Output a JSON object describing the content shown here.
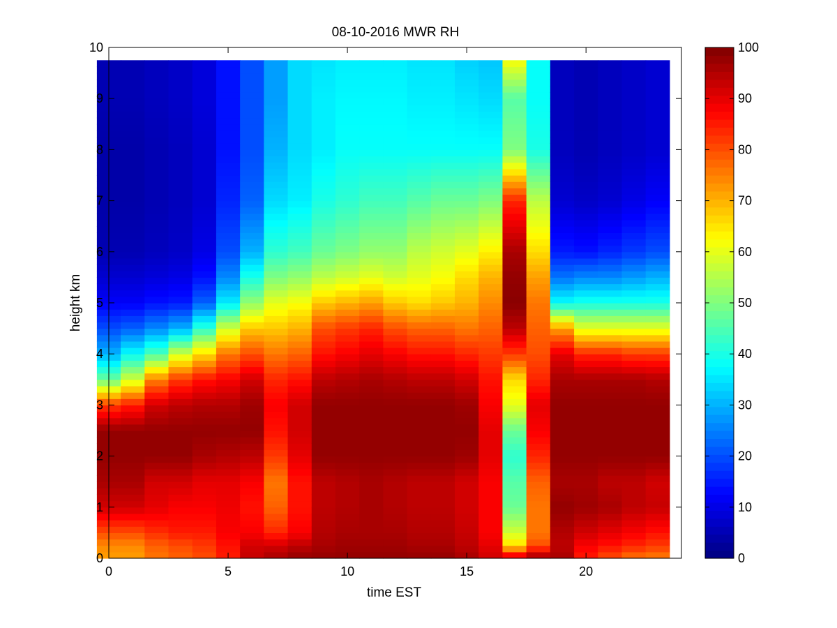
{
  "chart_data": {
    "type": "heatmap",
    "title": "08-10-2016 MWR RH",
    "xlabel": "time EST",
    "ylabel": "height km",
    "xlim": [
      0,
      24
    ],
    "ylim": [
      0,
      10
    ],
    "xticks": [
      0,
      5,
      10,
      15,
      20
    ],
    "yticks": [
      0,
      1,
      2,
      3,
      4,
      5,
      6,
      7,
      8,
      9,
      10
    ],
    "colorbar": {
      "min": 0,
      "max": 100,
      "ticks": [
        0,
        10,
        20,
        30,
        40,
        50,
        60,
        70,
        80,
        90,
        100
      ],
      "colormap": "jet"
    },
    "grid": false,
    "x_columns": [
      0,
      1,
      2,
      3,
      4,
      5,
      6,
      7,
      8,
      9,
      10,
      11,
      12,
      13,
      14,
      15,
      16,
      17,
      18,
      19,
      20,
      21,
      22,
      23
    ],
    "y_nodes_km": [
      0,
      0.25,
      0.5,
      1,
      1.5,
      2,
      2.5,
      3,
      3.5,
      4,
      4.5,
      5,
      5.5,
      6,
      7,
      8,
      9,
      9.75
    ],
    "rh_profiles": [
      [
        72,
        74,
        80,
        92,
        96,
        98,
        98,
        82,
        48,
        30,
        20,
        12,
        8,
        5,
        4,
        4,
        5,
        5
      ],
      [
        72,
        74,
        80,
        92,
        96,
        98,
        98,
        85,
        58,
        38,
        22,
        12,
        8,
        5,
        4,
        4,
        5,
        5
      ],
      [
        76,
        78,
        83,
        90,
        92,
        98,
        98,
        92,
        75,
        45,
        26,
        14,
        9,
        6,
        5,
        5,
        6,
        6
      ],
      [
        78,
        80,
        85,
        88,
        92,
        98,
        98,
        94,
        82,
        58,
        30,
        15,
        10,
        7,
        6,
        6,
        7,
        7
      ],
      [
        80,
        82,
        85,
        88,
        90,
        96,
        98,
        95,
        86,
        66,
        42,
        22,
        14,
        10,
        8,
        8,
        9,
        9
      ],
      [
        85,
        86,
        88,
        89,
        90,
        95,
        98,
        95,
        88,
        76,
        58,
        36,
        26,
        20,
        16,
        14,
        14,
        14
      ],
      [
        93,
        92,
        88,
        86,
        88,
        94,
        98,
        97,
        92,
        80,
        68,
        52,
        40,
        30,
        22,
        20,
        20,
        20
      ],
      [
        96,
        92,
        84,
        78,
        76,
        82,
        86,
        88,
        84,
        76,
        68,
        60,
        50,
        42,
        34,
        30,
        28,
        28
      ],
      [
        98,
        94,
        88,
        86,
        86,
        90,
        92,
        92,
        86,
        78,
        70,
        62,
        52,
        44,
        36,
        34,
        34,
        34
      ],
      [
        98,
        96,
        95,
        94,
        94,
        98,
        98,
        98,
        94,
        86,
        80,
        68,
        56,
        48,
        40,
        36,
        36,
        35
      ],
      [
        98,
        97,
        96,
        95,
        95,
        98,
        98,
        98,
        95,
        88,
        82,
        70,
        58,
        50,
        42,
        38,
        37,
        36
      ],
      [
        98,
        97,
        96,
        96,
        96,
        98,
        98,
        98,
        96,
        90,
        84,
        72,
        60,
        52,
        44,
        38,
        37,
        36
      ],
      [
        98,
        97,
        96,
        95,
        95,
        98,
        98,
        98,
        95,
        88,
        80,
        68,
        58,
        52,
        44,
        38,
        37,
        36
      ],
      [
        98,
        96,
        95,
        94,
        94,
        98,
        98,
        98,
        94,
        86,
        78,
        66,
        60,
        56,
        46,
        38,
        36,
        35
      ],
      [
        98,
        96,
        95,
        94,
        94,
        98,
        98,
        98,
        94,
        86,
        78,
        68,
        62,
        58,
        48,
        38,
        36,
        35
      ],
      [
        96,
        94,
        93,
        92,
        92,
        97,
        98,
        97,
        92,
        84,
        76,
        70,
        66,
        60,
        48,
        38,
        35,
        33
      ],
      [
        92,
        90,
        88,
        88,
        88,
        90,
        90,
        88,
        86,
        82,
        78,
        74,
        70,
        64,
        50,
        38,
        34,
        32
      ],
      [
        94,
        66,
        58,
        48,
        46,
        42,
        48,
        60,
        66,
        82,
        94,
        99,
        98,
        96,
        84,
        50,
        46,
        62
      ],
      [
        98,
        80,
        76,
        76,
        78,
        84,
        88,
        90,
        84,
        80,
        78,
        76,
        72,
        66,
        56,
        40,
        38,
        38
      ],
      [
        96,
        94,
        95,
        98,
        96,
        98,
        98,
        98,
        96,
        90,
        72,
        38,
        24,
        15,
        8,
        6,
        6,
        6
      ],
      [
        85,
        88,
        92,
        97,
        96,
        98,
        98,
        98,
        96,
        84,
        60,
        40,
        26,
        14,
        7,
        5,
        5,
        5
      ],
      [
        80,
        86,
        90,
        96,
        94,
        98,
        98,
        98,
        96,
        84,
        60,
        40,
        26,
        16,
        8,
        6,
        6,
        6
      ],
      [
        76,
        84,
        88,
        94,
        94,
        98,
        98,
        98,
        96,
        82,
        60,
        40,
        28,
        18,
        10,
        7,
        7,
        7
      ],
      [
        75,
        82,
        86,
        93,
        92,
        98,
        98,
        98,
        95,
        82,
        60,
        40,
        30,
        20,
        12,
        8,
        8,
        8
      ]
    ]
  }
}
